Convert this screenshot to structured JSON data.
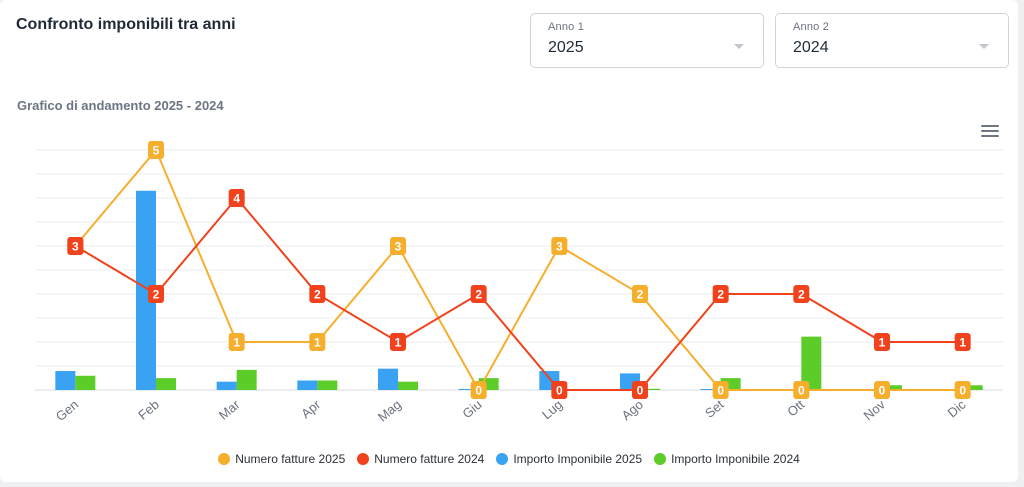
{
  "header": {
    "title": "Confronto imponibili tra anni"
  },
  "filters": {
    "anno1": {
      "label": "Anno 1",
      "value": "2025"
    },
    "anno2": {
      "label": "Anno 2",
      "value": "2024"
    }
  },
  "chart_title": "Grafico di andamento 2025 - 2024",
  "menu_icon": "hamburger-menu-icon",
  "chart_data": {
    "type": "bar",
    "categories": [
      "Gen",
      "Feb",
      "Mar",
      "Apr",
      "Mag",
      "Giu",
      "Lug",
      "Ago",
      "Set",
      "Ott",
      "Nov",
      "Dic"
    ],
    "series": [
      {
        "name": "Numero fatture 2025",
        "type": "line",
        "color": "#f6ae2d",
        "values": [
          3,
          5,
          1,
          1,
          3,
          0,
          3,
          2,
          0,
          0,
          0,
          0
        ]
      },
      {
        "name": "Numero fatture 2024",
        "type": "line",
        "color": "#f0421c",
        "values": [
          3,
          2,
          4,
          2,
          1,
          2,
          0,
          0,
          2,
          2,
          1,
          1
        ]
      },
      {
        "name": "Importo Imponibile 2025",
        "type": "bar",
        "color": "#3aa2f2",
        "values": [
          0.8,
          8.4,
          0.35,
          0.4,
          0.9,
          0.03,
          0.8,
          0.7,
          0.03,
          0,
          0,
          0
        ]
      },
      {
        "name": "Importo Imponibile 2024",
        "type": "bar",
        "color": "#5ccc28",
        "values": [
          0.6,
          0.5,
          0.85,
          0.4,
          0.35,
          0.5,
          0,
          0.05,
          0.5,
          2.25,
          0.2,
          0.2
        ]
      }
    ],
    "ylim_count": [
      0,
      5
    ],
    "ylim_amount": [
      0,
      8.5
    ],
    "grid": true,
    "legend_position": "bottom"
  }
}
